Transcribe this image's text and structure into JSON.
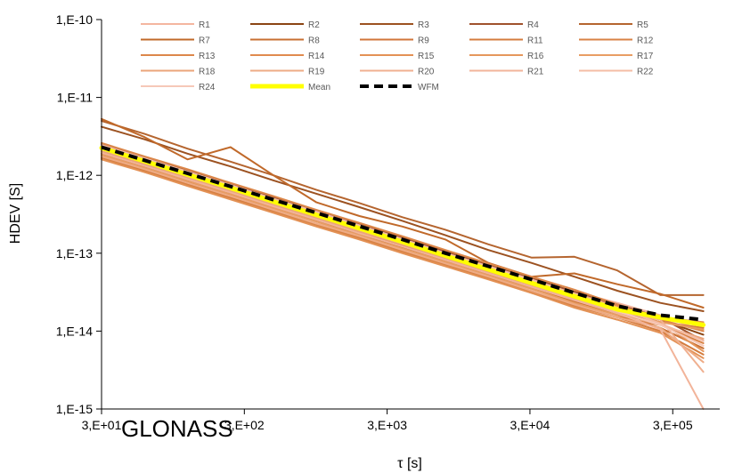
{
  "chart_data": {
    "type": "line",
    "annotation": "GLONASS",
    "xlabel": "τ [s]",
    "ylabel": "HDEV [S]",
    "x_scale": "log",
    "y_scale": "log",
    "xlim": [
      30,
      640000
    ],
    "ylim": [
      1e-15,
      1e-10
    ],
    "x_ticks": [
      30,
      300,
      3000,
      30000,
      300000
    ],
    "x_tick_labels": [
      "3,E+01",
      "3,E+02",
      "3,E+03",
      "3,E+04",
      "3,E+05"
    ],
    "y_ticks": [
      1e-10,
      1e-11,
      1e-12,
      1e-13,
      1e-14,
      1e-15
    ],
    "y_tick_labels": [
      "1,E-10",
      "1,E-11",
      "1,E-12",
      "1,E-13",
      "1,E-14",
      "1,E-15"
    ],
    "grid": false,
    "legend_position": "top",
    "x": [
      30,
      60,
      120,
      240,
      480,
      960,
      1920,
      3840,
      7680,
      15360,
      30720,
      61440,
      122880,
      245760,
      491520
    ],
    "series": [
      {
        "name": "R1",
        "color": "#f4b6a0",
        "width": 2,
        "values": [
          2.2e-12,
          1.5e-12,
          1e-12,
          6.8e-13,
          4.6e-13,
          3.1e-13,
          2.1e-13,
          1.4e-13,
          9.5e-14,
          6.4e-14,
          4.3e-14,
          3.2e-14,
          2.3e-14,
          1.6e-14,
          1e-14
        ]
      },
      {
        "name": "R2",
        "color": "#8b4513",
        "width": 2,
        "values": [
          1.9e-12,
          1.3e-12,
          8.7e-13,
          5.8e-13,
          3.9e-13,
          2.6e-13,
          1.8e-13,
          1.2e-13,
          8e-14,
          5.4e-14,
          3.7e-14,
          2.6e-14,
          1.9e-14,
          1.4e-14,
          9e-15
        ]
      },
      {
        "name": "R3",
        "color": "#9c5221",
        "width": 2,
        "values": [
          4.2e-12,
          2.9e-12,
          1.9e-12,
          1.3e-12,
          8.6e-13,
          5.8e-13,
          3.9e-13,
          2.6e-13,
          1.7e-13,
          1.1e-13,
          7.5e-14,
          5e-14,
          3.3e-14,
          2.3e-14,
          1.8e-14
        ]
      },
      {
        "name": "R4",
        "color": "#a0522d",
        "width": 2,
        "values": [
          2.5e-12,
          1.7e-12,
          1.15e-12,
          7.7e-13,
          5.2e-13,
          3.5e-13,
          2.35e-13,
          1.6e-13,
          1.05e-13,
          7.1e-14,
          4.8e-14,
          3.2e-14,
          2.2e-14,
          1.5e-14,
          7.5e-15
        ]
      },
      {
        "name": "R5",
        "color": "#b5652f",
        "width": 2,
        "values": [
          5e-12,
          3.4e-12,
          2.2e-12,
          1.5e-12,
          1e-12,
          6.5e-13,
          4.4e-13,
          2.9e-13,
          2e-13,
          1.3e-13,
          8.8e-14,
          9e-14,
          6e-14,
          2.9e-14,
          2.9e-14
        ]
      },
      {
        "name": "R7",
        "color": "#c0692a",
        "width": 2,
        "values": [
          5.3e-12,
          3.1e-12,
          1.6e-12,
          2.3e-12,
          1e-12,
          4.5e-13,
          3e-13,
          2.2e-13,
          1.5e-13,
          7.5e-14,
          5e-14,
          5.5e-14,
          4e-14,
          3e-14,
          2e-14
        ]
      },
      {
        "name": "R8",
        "color": "#c86f32",
        "width": 2,
        "values": [
          1.8e-12,
          1.25e-12,
          8.4e-13,
          5.6e-13,
          3.8e-13,
          2.55e-13,
          1.7e-13,
          1.15e-13,
          7.7e-14,
          5.2e-14,
          3.5e-14,
          2.4e-14,
          1.6e-14,
          1.1e-14,
          6e-15
        ]
      },
      {
        "name": "R9",
        "color": "#d1763a",
        "width": 2,
        "values": [
          2e-12,
          1.35e-12,
          9e-13,
          6.1e-13,
          4.1e-13,
          2.8e-13,
          1.85e-13,
          1.25e-13,
          8.4e-14,
          5.7e-14,
          3.8e-14,
          2.6e-14,
          1.8e-14,
          1.3e-14,
          1.1e-14
        ]
      },
      {
        "name": "R11",
        "color": "#d47c3e",
        "width": 2,
        "values": [
          1.7e-12,
          1.15e-12,
          7.8e-13,
          5.2e-13,
          3.5e-13,
          2.35e-13,
          1.6e-13,
          1.05e-13,
          7.1e-14,
          4.8e-14,
          3.2e-14,
          2.2e-14,
          1.5e-14,
          1e-14,
          5e-15
        ]
      },
      {
        "name": "R12",
        "color": "#d88244",
        "width": 2,
        "values": [
          1.65e-12,
          1.1e-12,
          7.5e-13,
          5e-13,
          3.4e-13,
          2.3e-13,
          1.55e-13,
          1.05e-13,
          7e-14,
          4.7e-14,
          3.1e-14,
          2.1e-14,
          1.5e-14,
          1.2e-14,
          7e-15
        ]
      },
      {
        "name": "R13",
        "color": "#dc874a",
        "width": 2,
        "values": [
          2.6e-12,
          1.75e-12,
          1.2e-12,
          8e-13,
          5.4e-13,
          3.6e-13,
          2.45e-13,
          1.65e-13,
          1.1e-13,
          7.4e-14,
          5e-14,
          3.4e-14,
          2.2e-14,
          1.4e-14,
          1e-14
        ]
      },
      {
        "name": "R14",
        "color": "#e08b4e",
        "width": 2,
        "values": [
          2.1e-12,
          1.45e-12,
          9.7e-13,
          6.5e-13,
          4.4e-13,
          2.95e-13,
          2e-13,
          1.35e-13,
          9e-14,
          6e-14,
          4.1e-14,
          3e-14,
          2.1e-14,
          1.5e-14,
          1.3e-14
        ]
      },
      {
        "name": "R15",
        "color": "#e39155",
        "width": 2,
        "values": [
          1.6e-12,
          1.1e-12,
          7.3e-13,
          4.9e-13,
          3.3e-13,
          2.2e-13,
          1.5e-13,
          1e-13,
          6.8e-14,
          4.6e-14,
          3.1e-14,
          2e-14,
          1.4e-14,
          9.5e-15,
          4.5e-15
        ]
      },
      {
        "name": "R16",
        "color": "#e5975c",
        "width": 2,
        "values": [
          2.3e-12,
          1.55e-12,
          1.05e-12,
          7e-13,
          4.7e-13,
          3.15e-13,
          2.1e-13,
          1.4e-13,
          9.5e-14,
          6.4e-14,
          4.3e-14,
          2.9e-14,
          1.9e-14,
          1.3e-14,
          5.5e-15
        ]
      },
      {
        "name": "R17",
        "color": "#e89d64",
        "width": 2,
        "values": [
          1.85e-12,
          1.25e-12,
          8.5e-13,
          5.7e-13,
          3.8e-13,
          2.55e-13,
          1.7e-13,
          1.15e-13,
          7.8e-14,
          5.2e-14,
          3.5e-14,
          2.3e-14,
          1.6e-14,
          1.3e-14,
          1.05e-14
        ]
      },
      {
        "name": "R18",
        "color": "#eba57a",
        "width": 2,
        "values": [
          2.05e-12,
          1.4e-12,
          9.3e-13,
          6.3e-13,
          4.2e-13,
          2.85e-13,
          1.9e-13,
          1.3e-13,
          8.6e-14,
          5.8e-14,
          3.9e-14,
          2.5e-14,
          1.7e-14,
          1.2e-14,
          8e-15
        ]
      },
      {
        "name": "R19",
        "color": "#eeab85",
        "width": 2,
        "values": [
          1.75e-12,
          1.2e-12,
          8e-13,
          5.4e-13,
          3.6e-13,
          2.4e-13,
          1.65e-13,
          1.1e-13,
          7.4e-14,
          5e-14,
          3.3e-14,
          2.2e-14,
          1.5e-14,
          1.1e-14,
          4e-15
        ]
      },
      {
        "name": "R20",
        "color": "#f0b090",
        "width": 2,
        "values": [
          2.35e-12,
          1.6e-12,
          1.08e-12,
          7.2e-13,
          4.85e-13,
          3.25e-13,
          2.2e-13,
          1.48e-13,
          9.9e-14,
          6.6e-14,
          4e-14,
          2.6e-14,
          1.8e-14,
          1.4e-14,
          3e-15
        ]
      },
      {
        "name": "R21",
        "color": "#f2b49a",
        "width": 2,
        "values": [
          1.95e-12,
          1.32e-12,
          8.9e-13,
          6e-13,
          4e-13,
          2.7e-13,
          1.8e-13,
          1.22e-13,
          8.2e-14,
          5.5e-14,
          3.7e-14,
          2.5e-14,
          1.7e-14,
          1.05e-14,
          1e-15
        ]
      },
      {
        "name": "R22",
        "color": "#f4bca5",
        "width": 2,
        "values": [
          2.45e-12,
          1.65e-12,
          1.12e-12,
          7.5e-13,
          5e-13,
          3.4e-13,
          2.28e-13,
          1.52e-13,
          1e-13,
          6.8e-14,
          4.6e-14,
          3e-14,
          2e-14,
          1.25e-14,
          7.5e-15
        ]
      },
      {
        "name": "R24",
        "color": "#f6c8b8",
        "width": 2,
        "values": [
          2.15e-12,
          1.47e-12,
          9.8e-13,
          6.6e-13,
          4.4e-13,
          2.98e-13,
          2e-13,
          1.34e-13,
          9e-14,
          6e-14,
          4e-14,
          2.7e-14,
          1.8e-14,
          1.2e-14,
          6.5e-15
        ]
      },
      {
        "name": "Mean",
        "color": "#ffff00",
        "width": 5,
        "values": [
          2.25e-12,
          1.52e-12,
          1.02e-12,
          6.9e-13,
          4.6e-13,
          3.1e-13,
          2.08e-13,
          1.4e-13,
          9.3e-14,
          6.2e-14,
          4.15e-14,
          2.8e-14,
          1.9e-14,
          1.5e-14,
          1.2e-14
        ]
      },
      {
        "name": "WFM",
        "color": "#000000",
        "width": 4,
        "dash": "10,6",
        "values": [
          2.3e-12,
          1.56e-12,
          1.06e-12,
          7.2e-13,
          4.85e-13,
          3.3e-13,
          2.22e-13,
          1.5e-13,
          1e-13,
          6.8e-14,
          4.6e-14,
          3.1e-14,
          2.1e-14,
          1.6e-14,
          1.4e-14
        ]
      }
    ]
  }
}
